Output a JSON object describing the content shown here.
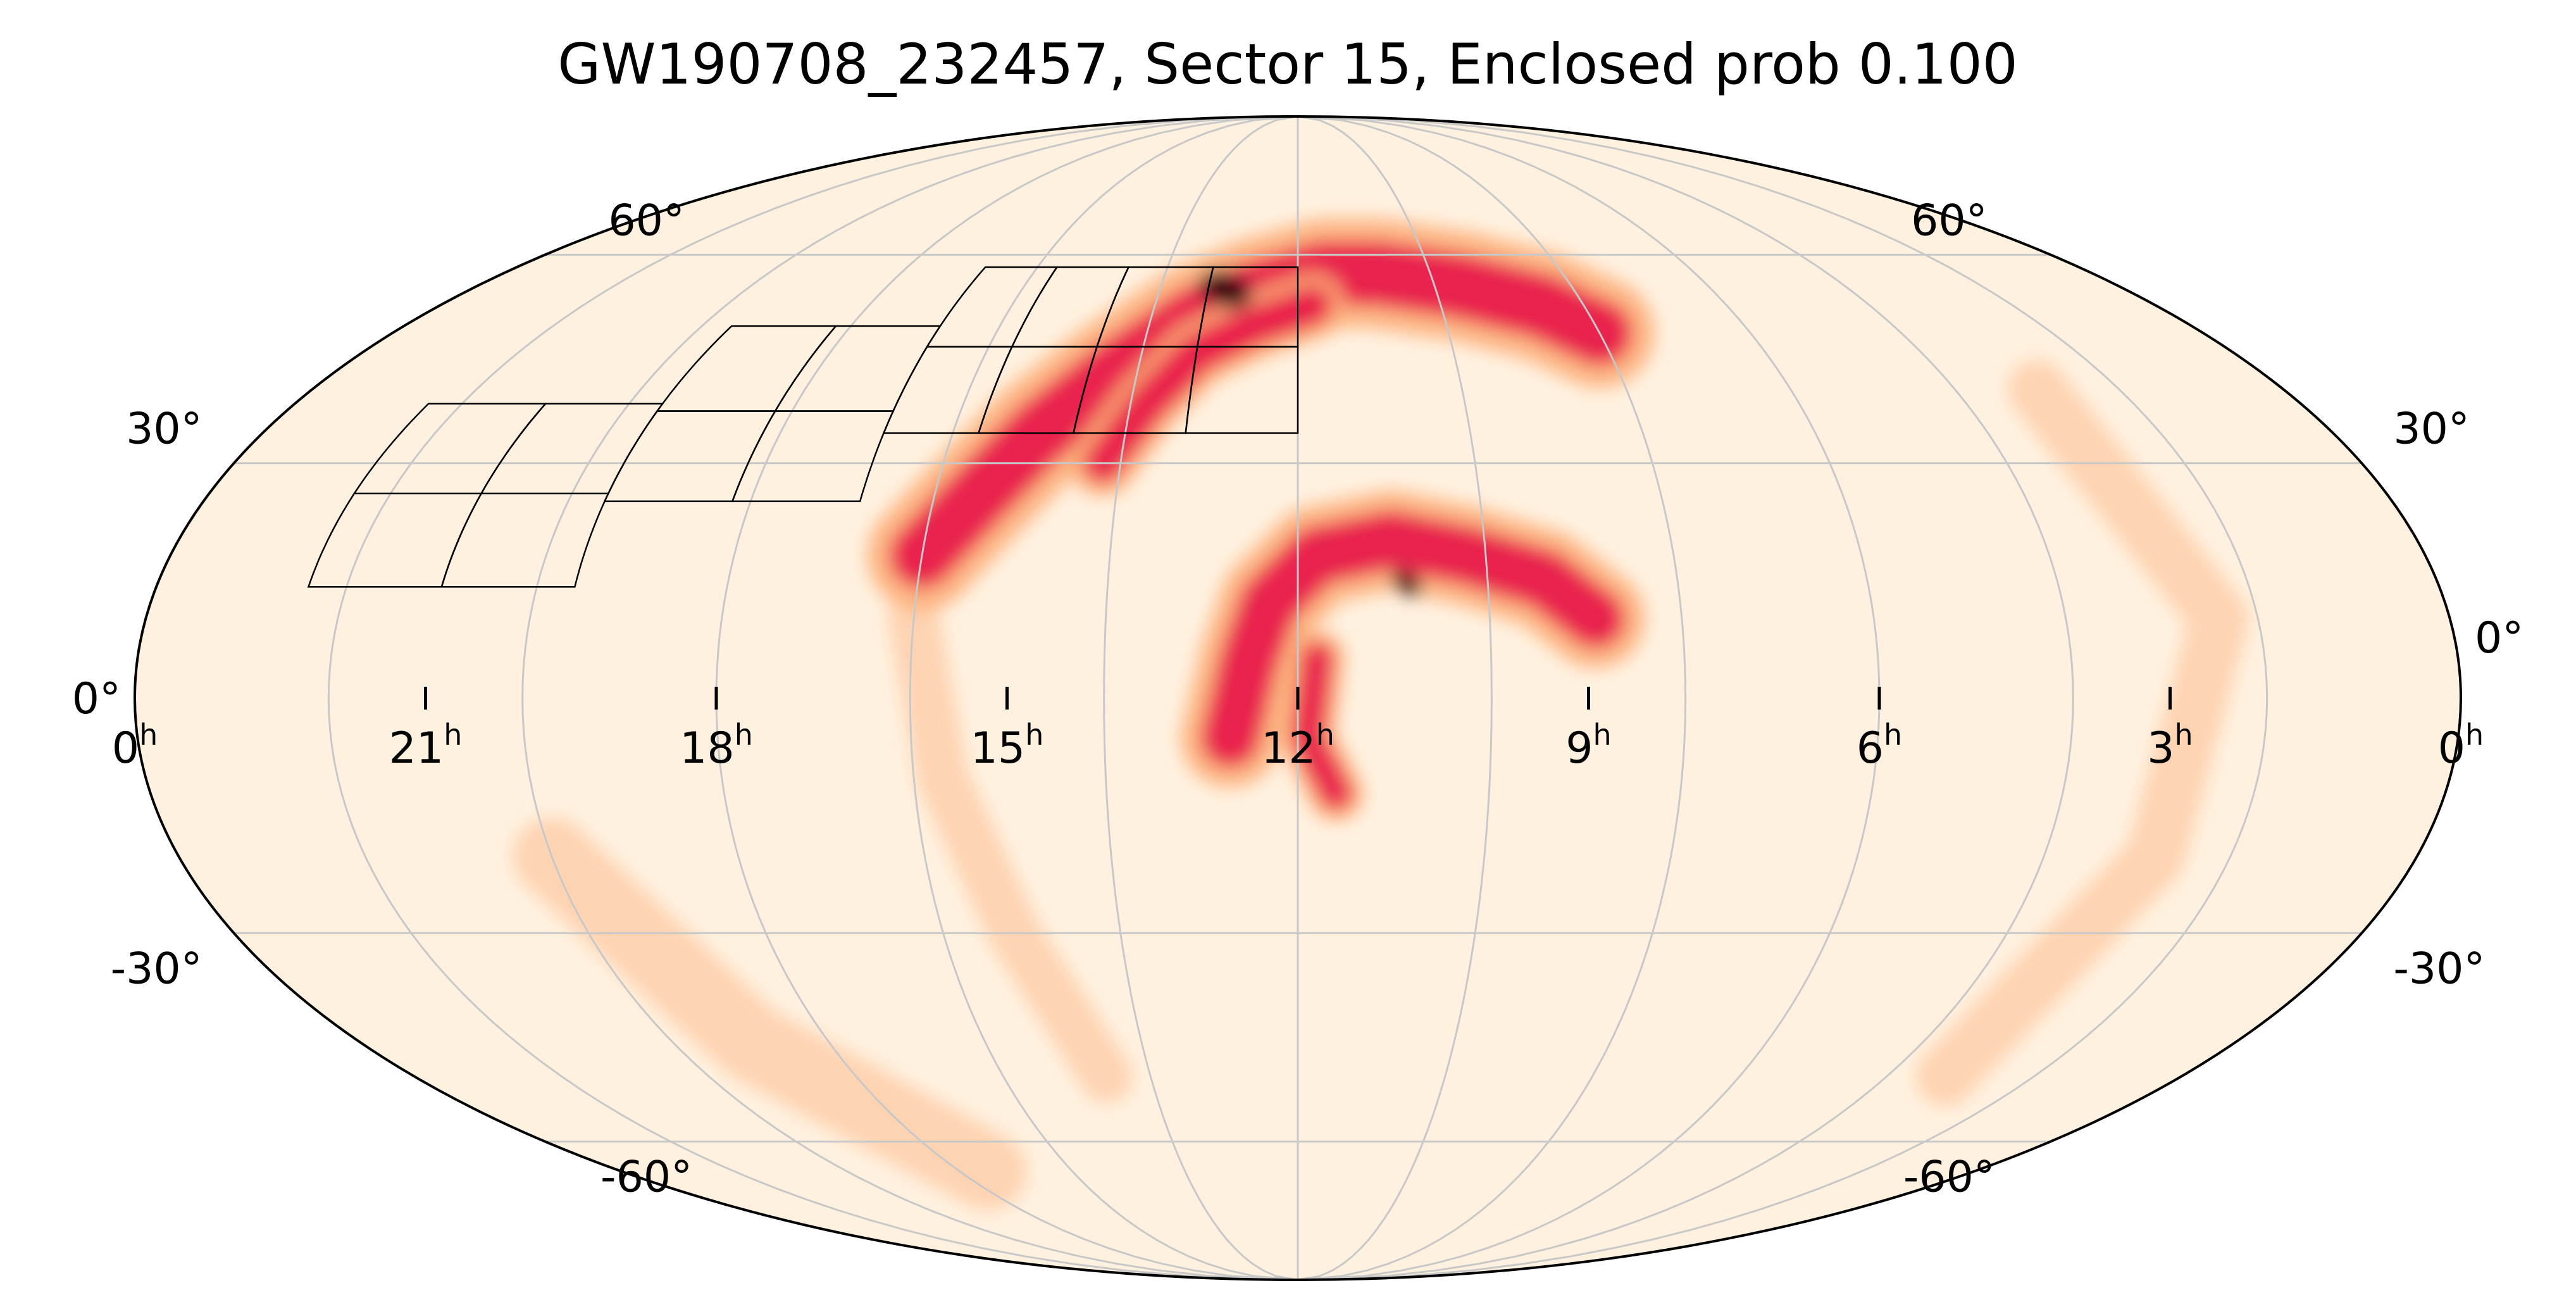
{
  "title": "GW190708_232457, Sector 15, Enclosed prob 0.100",
  "map": {
    "projection": "mollweide",
    "coordinate_frame": "equatorial",
    "ra_direction": "increasing-to-left",
    "colormap": "sequential cream-orange-crimson-black",
    "colors": {
      "low": "#fff1e0",
      "mid": "#fdb07a",
      "high": "#e8184a",
      "peak": "#2a0008",
      "graticule": "#c8c8c8",
      "outline": "#000000"
    },
    "ra_ticks": [
      {
        "value": 24,
        "label": "0",
        "unit": "h"
      },
      {
        "value": 21,
        "label": "21",
        "unit": "h"
      },
      {
        "value": 18,
        "label": "18",
        "unit": "h"
      },
      {
        "value": 15,
        "label": "15",
        "unit": "h"
      },
      {
        "value": 12,
        "label": "12",
        "unit": "h"
      },
      {
        "value": 9,
        "label": "9",
        "unit": "h"
      },
      {
        "value": 6,
        "label": "6",
        "unit": "h"
      },
      {
        "value": 3,
        "label": "3",
        "unit": "h"
      },
      {
        "value": 0,
        "label": "0",
        "unit": "h"
      }
    ],
    "dec_ticks": [
      {
        "value": 60,
        "label": "60°"
      },
      {
        "value": 30,
        "label": "30°"
      },
      {
        "value": 0,
        "label": "0°"
      },
      {
        "value": -30,
        "label": "-30°"
      },
      {
        "value": -60,
        "label": "-60°"
      }
    ],
    "probability_regions": [
      {
        "name": "northern-arc-upper",
        "points": [
          [
            16.0,
            18
          ],
          [
            15.5,
            26
          ],
          [
            15.0,
            34
          ],
          [
            14.3,
            42
          ],
          [
            13.4,
            50
          ],
          [
            12.6,
            54
          ],
          [
            11.6,
            57
          ],
          [
            10.8,
            57
          ],
          [
            9.6,
            55
          ],
          [
            8.6,
            52
          ],
          [
            8.0,
            48
          ]
        ],
        "width_deg": 10,
        "strength": 0.85
      },
      {
        "name": "northern-arc-lower",
        "points": [
          [
            14.2,
            30
          ],
          [
            13.8,
            38
          ],
          [
            13.3,
            45
          ],
          [
            12.6,
            49
          ],
          [
            11.8,
            52
          ]
        ],
        "width_deg": 6,
        "strength": 0.6
      },
      {
        "name": "hotspot-north",
        "points": [
          [
            13.2,
            55
          ],
          [
            12.9,
            54
          ]
        ],
        "width_deg": 5,
        "strength": 1.0
      },
      {
        "name": "central-arc",
        "points": [
          [
            12.7,
            -5
          ],
          [
            12.5,
            5
          ],
          [
            12.3,
            12
          ],
          [
            11.8,
            18
          ],
          [
            11.0,
            20
          ],
          [
            10.2,
            18
          ],
          [
            9.4,
            15
          ],
          [
            8.9,
            10
          ]
        ],
        "width_deg": 9,
        "strength": 0.85
      },
      {
        "name": "central-drop",
        "points": [
          [
            11.8,
            5
          ],
          [
            11.9,
            -5
          ],
          [
            11.6,
            -12
          ]
        ],
        "width_deg": 5,
        "strength": 0.55
      },
      {
        "name": "hotspot-central",
        "points": [
          [
            10.9,
            15
          ],
          [
            10.8,
            14
          ]
        ],
        "width_deg": 3,
        "strength": 1.0
      },
      {
        "name": "southern-streak",
        "points": [
          [
            16.0,
            10
          ],
          [
            15.7,
            -10
          ],
          [
            15.2,
            -30
          ],
          [
            14.6,
            -50
          ]
        ],
        "width_deg": 8,
        "strength": 0.18
      },
      {
        "name": "faint-band-south",
        "points": [
          [
            20.0,
            -20
          ],
          [
            19.0,
            -45
          ],
          [
            17.5,
            -65
          ]
        ],
        "width_deg": 12,
        "strength": 0.12
      },
      {
        "name": "faint-band-east",
        "points": [
          [
            3.0,
            40
          ],
          [
            2.4,
            10
          ],
          [
            2.8,
            -20
          ],
          [
            3.2,
            -50
          ]
        ],
        "width_deg": 9,
        "strength": 0.14
      }
    ],
    "sector_footprint": {
      "label": "Sector 15",
      "cameras": [
        {
          "name": "camera-1",
          "ra_min": 19.6,
          "ra_max": 22.4,
          "dec_min": 14,
          "dec_max": 38
        },
        {
          "name": "camera-2",
          "ra_min": 16.8,
          "ra_max": 19.6,
          "dec_min": 25,
          "dec_max": 49
        },
        {
          "name": "camera-3",
          "ra_min": 14.6,
          "ra_max": 16.8,
          "dec_min": 34,
          "dec_max": 58
        },
        {
          "name": "camera-4",
          "ra_min": 12.0,
          "ra_max": 14.6,
          "dec_min": 34,
          "dec_max": 58
        }
      ]
    }
  }
}
